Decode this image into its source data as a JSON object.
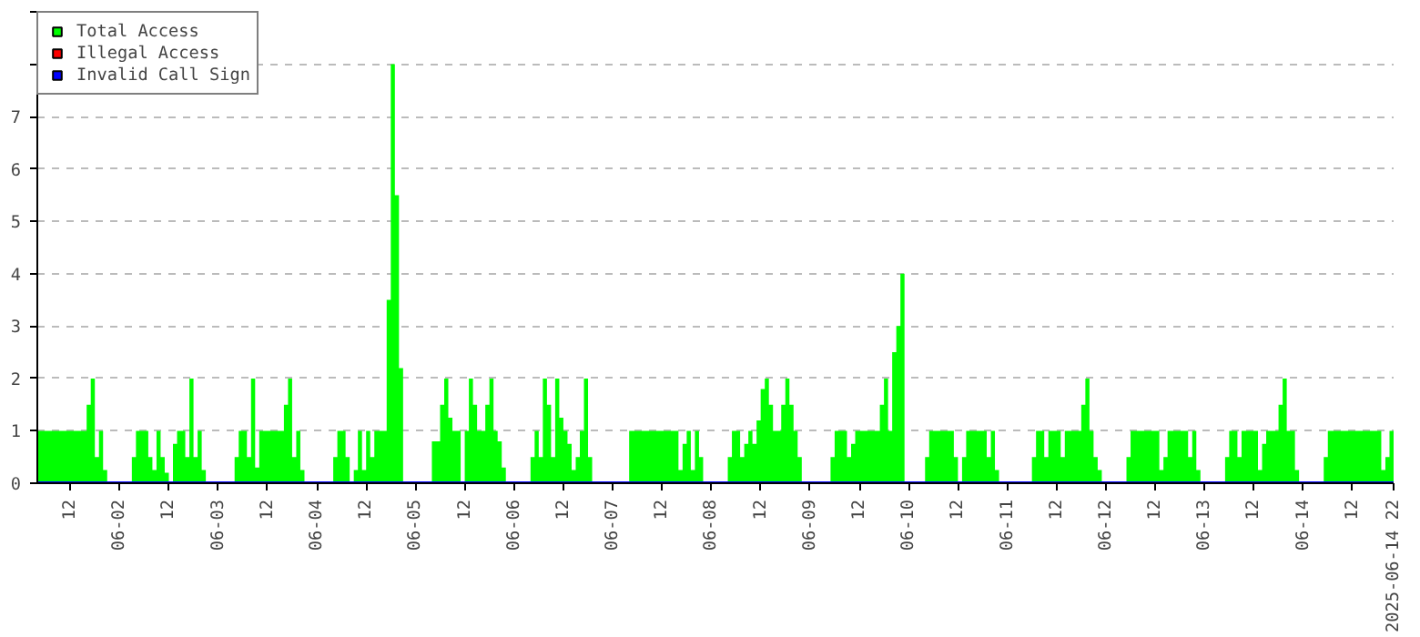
{
  "chart_data": {
    "type": "area",
    "legend": "top left",
    "grid": "y",
    "marker": "none",
    "xlim": [
      "2025-06-01T04:00",
      "2025-06-14T22:00"
    ],
    "ylim": [
      0,
      9
    ],
    "yticks": [
      0,
      1,
      2,
      3,
      4,
      5,
      6,
      7,
      {
        "value": 8,
        "label": null
      },
      {
        "value": 9,
        "label": null
      }
    ],
    "xticks": [
      {
        "value": "2025-06-01T12:00",
        "label": "12"
      },
      {
        "value": "2025-06-02",
        "label": "06-02"
      },
      {
        "value": "2025-06-02T12:00",
        "label": "12"
      },
      {
        "value": "2025-06-03",
        "label": "06-03"
      },
      {
        "value": "2025-06-03T12:00",
        "label": "12"
      },
      {
        "value": "2025-06-04",
        "label": "06-04"
      },
      {
        "value": "2025-06-04T12:00",
        "label": "12"
      },
      {
        "value": "2025-06-05",
        "label": "06-05"
      },
      {
        "value": "2025-06-05T12:00",
        "label": "12"
      },
      {
        "value": "2025-06-06",
        "label": "06-06"
      },
      {
        "value": "2025-06-06T12:00",
        "label": "12"
      },
      {
        "value": "2025-06-07",
        "label": "06-07"
      },
      {
        "value": "2025-06-07T12:00",
        "label": "12"
      },
      {
        "value": "2025-06-08",
        "label": "06-08"
      },
      {
        "value": "2025-06-08T12:00",
        "label": "12"
      },
      {
        "value": "2025-06-09",
        "label": "06-09"
      },
      {
        "value": "2025-06-09T12:00",
        "label": "12"
      },
      {
        "value": "2025-06-10",
        "label": "06-10"
      },
      {
        "value": "2025-06-10T12:00",
        "label": "12"
      },
      {
        "value": "2025-06-11",
        "label": "06-11"
      },
      {
        "value": "2025-06-11T12:00",
        "label": "12"
      },
      {
        "value": "2025-06-12",
        "label": "06-12"
      },
      {
        "value": "2025-06-12T12:00",
        "label": "12"
      },
      {
        "value": "2025-06-13",
        "label": "06-13"
      },
      {
        "value": "2025-06-13T12:00",
        "label": "12"
      },
      {
        "value": "2025-06-14",
        "label": "06-14"
      },
      {
        "value": "2025-06-14T12:00",
        "label": "12"
      },
      {
        "value": "2025-06-14T22:00",
        "label": "2025-06-14 22"
      }
    ],
    "series": [
      {
        "name": "Total Access",
        "color": "#00ff00",
        "x": [
          "2025-06-01T04:00",
          "2025-06-01T16:00",
          "2025-06-01T17:00",
          "2025-06-01T18:00",
          "2025-06-01T19:00",
          "2025-06-01T20:00",
          "2025-06-01T21:00",
          "2025-06-02T03:00",
          "2025-06-02T04:00",
          "2025-06-02T07:00",
          "2025-06-02T08:00",
          "2025-06-02T09:00",
          "2025-06-02T10:00",
          "2025-06-02T11:00",
          "2025-06-02T12:00",
          "2025-06-02T13:00",
          "2025-06-02T14:00",
          "2025-06-02T16:00",
          "2025-06-02T17:00",
          "2025-06-02T18:00",
          "2025-06-02T19:00",
          "2025-06-02T20:00",
          "2025-06-02T21:00",
          "2025-06-03T04:00",
          "2025-06-03T05:00",
          "2025-06-03T07:00",
          "2025-06-03T08:00",
          "2025-06-03T09:00",
          "2025-06-03T10:00",
          "2025-06-03T16:00",
          "2025-06-03T17:00",
          "2025-06-03T18:00",
          "2025-06-03T19:00",
          "2025-06-03T20:00",
          "2025-06-03T21:00",
          "2025-06-04T04:00",
          "2025-06-04T05:00",
          "2025-06-04T07:00",
          "2025-06-04T08:00",
          "2025-06-04T09:00",
          "2025-06-04T10:00",
          "2025-06-04T11:00",
          "2025-06-04T12:00",
          "2025-06-04T13:00",
          "2025-06-04T14:00",
          "2025-06-04T17:00",
          "2025-06-04T18:00",
          "2025-06-04T19:00",
          "2025-06-04T20:00",
          "2025-06-04T21:00",
          "2025-06-05T04:00",
          "2025-06-05T06:00",
          "2025-06-05T07:00",
          "2025-06-05T08:00",
          "2025-06-05T09:00",
          "2025-06-05T11:00",
          "2025-06-05T12:00",
          "2025-06-05T13:00",
          "2025-06-05T14:00",
          "2025-06-05T15:00",
          "2025-06-05T17:00",
          "2025-06-05T18:00",
          "2025-06-05T19:00",
          "2025-06-05T20:00",
          "2025-06-05T21:00",
          "2025-06-05T22:00",
          "2025-06-06T04:00",
          "2025-06-06T05:00",
          "2025-06-06T06:00",
          "2025-06-06T07:00",
          "2025-06-06T08:00",
          "2025-06-06T09:00",
          "2025-06-06T10:00",
          "2025-06-06T11:00",
          "2025-06-06T12:00",
          "2025-06-06T13:00",
          "2025-06-06T14:00",
          "2025-06-06T15:00",
          "2025-06-06T16:00",
          "2025-06-06T17:00",
          "2025-06-06T18:00",
          "2025-06-06T19:00",
          "2025-06-07T04:00",
          "2025-06-07T16:00",
          "2025-06-07T17:00",
          "2025-06-07T18:00",
          "2025-06-07T19:00",
          "2025-06-07T20:00",
          "2025-06-07T21:00",
          "2025-06-07T22:00",
          "2025-06-08T04:00",
          "2025-06-08T05:00",
          "2025-06-08T07:00",
          "2025-06-08T08:00",
          "2025-06-08T09:00",
          "2025-06-08T10:00",
          "2025-06-08T11:00",
          "2025-06-08T12:00",
          "2025-06-08T13:00",
          "2025-06-08T14:00",
          "2025-06-08T15:00",
          "2025-06-08T17:00",
          "2025-06-08T18:00",
          "2025-06-08T19:00",
          "2025-06-08T20:00",
          "2025-06-08T21:00",
          "2025-06-08T22:00",
          "2025-06-09T05:00",
          "2025-06-09T06:00",
          "2025-06-09T09:00",
          "2025-06-09T10:00",
          "2025-06-09T11:00",
          "2025-06-09T17:00",
          "2025-06-09T18:00",
          "2025-06-09T19:00",
          "2025-06-09T20:00",
          "2025-06-09T21:00",
          "2025-06-09T22:00",
          "2025-06-09T23:00",
          "2025-06-10T04:00",
          "2025-06-10T05:00",
          "2025-06-10T11:00",
          "2025-06-10T12:00",
          "2025-06-10T13:00",
          "2025-06-10T14:00",
          "2025-06-10T19:00",
          "2025-06-10T20:00",
          "2025-06-10T21:00",
          "2025-06-10T22:00",
          "2025-06-11T06:00",
          "2025-06-11T07:00",
          "2025-06-11T09:00",
          "2025-06-11T10:00",
          "2025-06-11T13:00",
          "2025-06-11T14:00",
          "2025-06-11T18:00",
          "2025-06-11T19:00",
          "2025-06-11T20:00",
          "2025-06-11T21:00",
          "2025-06-11T22:00",
          "2025-06-11T23:00",
          "2025-06-12T05:00",
          "2025-06-12T06:00",
          "2025-06-12T13:00",
          "2025-06-12T14:00",
          "2025-06-12T15:00",
          "2025-06-12T20:00",
          "2025-06-12T21:00",
          "2025-06-12T22:00",
          "2025-06-12T23:00",
          "2025-06-13T05:00",
          "2025-06-13T06:00",
          "2025-06-13T08:00",
          "2025-06-13T09:00",
          "2025-06-13T13:00",
          "2025-06-13T14:00",
          "2025-06-13T15:00",
          "2025-06-13T18:00",
          "2025-06-13T19:00",
          "2025-06-13T20:00",
          "2025-06-13T22:00",
          "2025-06-13T23:00",
          "2025-06-14T05:00",
          "2025-06-14T06:00",
          "2025-06-14T19:00",
          "2025-06-14T20:00",
          "2025-06-14T21:00",
          "2025-06-14T22:00"
        ],
        "values": [
          1,
          1.5,
          2,
          0.5,
          1,
          0.25,
          0,
          0.5,
          1,
          0.5,
          0.25,
          1,
          0.5,
          0.2,
          0,
          0.75,
          1,
          0.5,
          2,
          0.5,
          1,
          0.25,
          0,
          0.5,
          1,
          0.5,
          2,
          0.3,
          1,
          1.5,
          2,
          0.5,
          1,
          0.25,
          0,
          0.5,
          1,
          0.5,
          0,
          0.25,
          1,
          0.25,
          1,
          0.5,
          1,
          3.5,
          8,
          5.5,
          2.2,
          0,
          0.8,
          1.5,
          2,
          1.25,
          1,
          0,
          1,
          2,
          1.5,
          1,
          1.5,
          2,
          1,
          0.8,
          0.3,
          0,
          0.5,
          1,
          0.5,
          2,
          1.5,
          0.5,
          2,
          1.25,
          1,
          0.75,
          0.25,
          0.5,
          1,
          2,
          0.5,
          0,
          1,
          0.25,
          0.75,
          1,
          0.25,
          1,
          0.5,
          0,
          0.5,
          1,
          0.5,
          0.75,
          1,
          0.75,
          1.2,
          1.8,
          2,
          1.5,
          1,
          1.5,
          2,
          1.5,
          1,
          0.5,
          0,
          0.5,
          1,
          0.5,
          0.75,
          1,
          1.5,
          2,
          1,
          2.5,
          3,
          4,
          0,
          0.5,
          1,
          0.5,
          0,
          0.5,
          1,
          0.5,
          1,
          0.25,
          0,
          0.5,
          1,
          0.5,
          1,
          0.5,
          1,
          1.5,
          2,
          1,
          0.5,
          0.25,
          0,
          0.5,
          1,
          0.25,
          0.5,
          1,
          0.5,
          1,
          0.25,
          0,
          0.5,
          1,
          0.5,
          1,
          0.25,
          0.75,
          1,
          1.5,
          2,
          1,
          0.25,
          0,
          0.5,
          1,
          0.25,
          0.5,
          1,
          1
        ]
      },
      {
        "name": "Illegal Access",
        "type": "line",
        "color": "#ff0000"
      },
      {
        "name": "Invalid Call Sign",
        "type": "line",
        "color": "#0000ff",
        "x": [
          "2025-06-01T04:00",
          "2025-06-14T22:00"
        ],
        "values": [
          0,
          0
        ]
      }
    ]
  }
}
